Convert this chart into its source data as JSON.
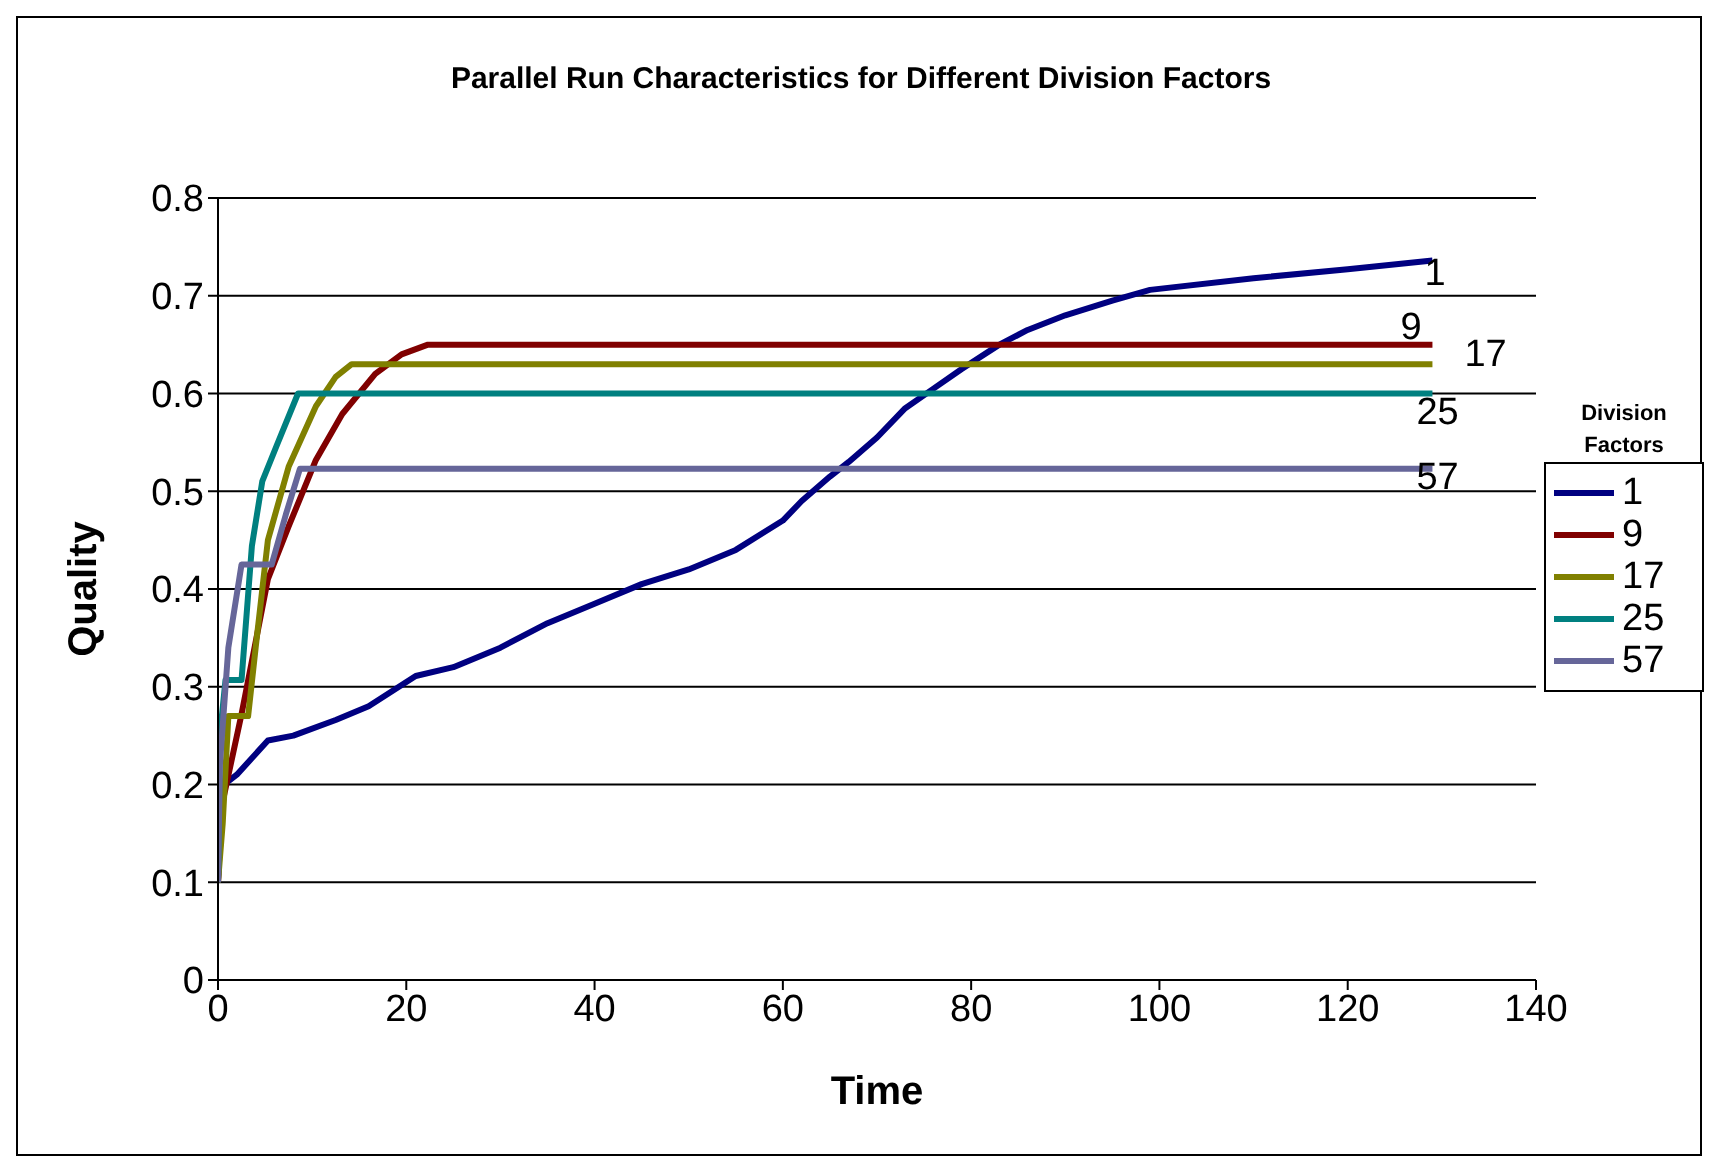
{
  "chart_data": {
    "type": "line",
    "title": "Parallel Run Characteristics for Different Division Factors",
    "xlabel": "Time",
    "ylabel": "Quality",
    "legend_title": "Division Factors",
    "legend": "right",
    "grid": "y",
    "marker": "none",
    "line_style": "solid",
    "xlim": [
      0,
      140
    ],
    "xticks": [
      0,
      20,
      40,
      60,
      80,
      100,
      120,
      140
    ],
    "ylim": [
      0,
      0.8
    ],
    "yticks": [
      0,
      0.1,
      0.2,
      0.3,
      0.4,
      0.5,
      0.6,
      0.7,
      0.8
    ],
    "series": [
      {
        "name": "1",
        "color": "#000080",
        "x": [
          0,
          0.4,
          2,
          5.3,
          8,
          12.5,
          16,
          21,
          25,
          30,
          35,
          40,
          45,
          50,
          55,
          60,
          62,
          65,
          67,
          70,
          73,
          76,
          79,
          83,
          86,
          90,
          95,
          99,
          110,
          120,
          129
        ],
        "values": [
          0.1,
          0.198,
          0.21,
          0.245,
          0.25,
          0.266,
          0.28,
          0.311,
          0.32,
          0.34,
          0.365,
          0.385,
          0.405,
          0.42,
          0.44,
          0.47,
          0.49,
          0.515,
          0.53,
          0.555,
          0.585,
          0.605,
          0.625,
          0.65,
          0.665,
          0.68,
          0.695,
          0.706,
          0.718,
          0.727,
          0.736
        ]
      },
      {
        "name": "9",
        "color": "#800000",
        "x": [
          0,
          0.4,
          2.5,
          5.3,
          7.5,
          10.4,
          13.2,
          16.7,
          19.5,
          22.3,
          129
        ],
        "values": [
          0.1,
          0.178,
          0.272,
          0.41,
          0.464,
          0.532,
          0.579,
          0.62,
          0.64,
          0.65,
          0.65
        ]
      },
      {
        "name": "17",
        "color": "#808000",
        "x": [
          0,
          0.5,
          1.1,
          3.2,
          4,
          5.3,
          7.5,
          10.4,
          12.5,
          14.2,
          129
        ],
        "values": [
          0.1,
          0.16,
          0.27,
          0.27,
          0.34,
          0.45,
          0.525,
          0.587,
          0.617,
          0.63,
          0.63
        ]
      },
      {
        "name": "25",
        "color": "#008080",
        "x": [
          0,
          0.2,
          0.8,
          2.5,
          3.6,
          4.7,
          6.2,
          8.5,
          129
        ],
        "values": [
          0.1,
          0.25,
          0.307,
          0.307,
          0.444,
          0.51,
          0.546,
          0.6,
          0.6
        ]
      },
      {
        "name": "57",
        "color": "#666699",
        "x": [
          0,
          0.2,
          1.1,
          2.5,
          5.7,
          7.2,
          8.7,
          129
        ],
        "values": [
          0.1,
          0.22,
          0.34,
          0.425,
          0.425,
          0.476,
          0.523,
          0.523
        ]
      }
    ]
  }
}
